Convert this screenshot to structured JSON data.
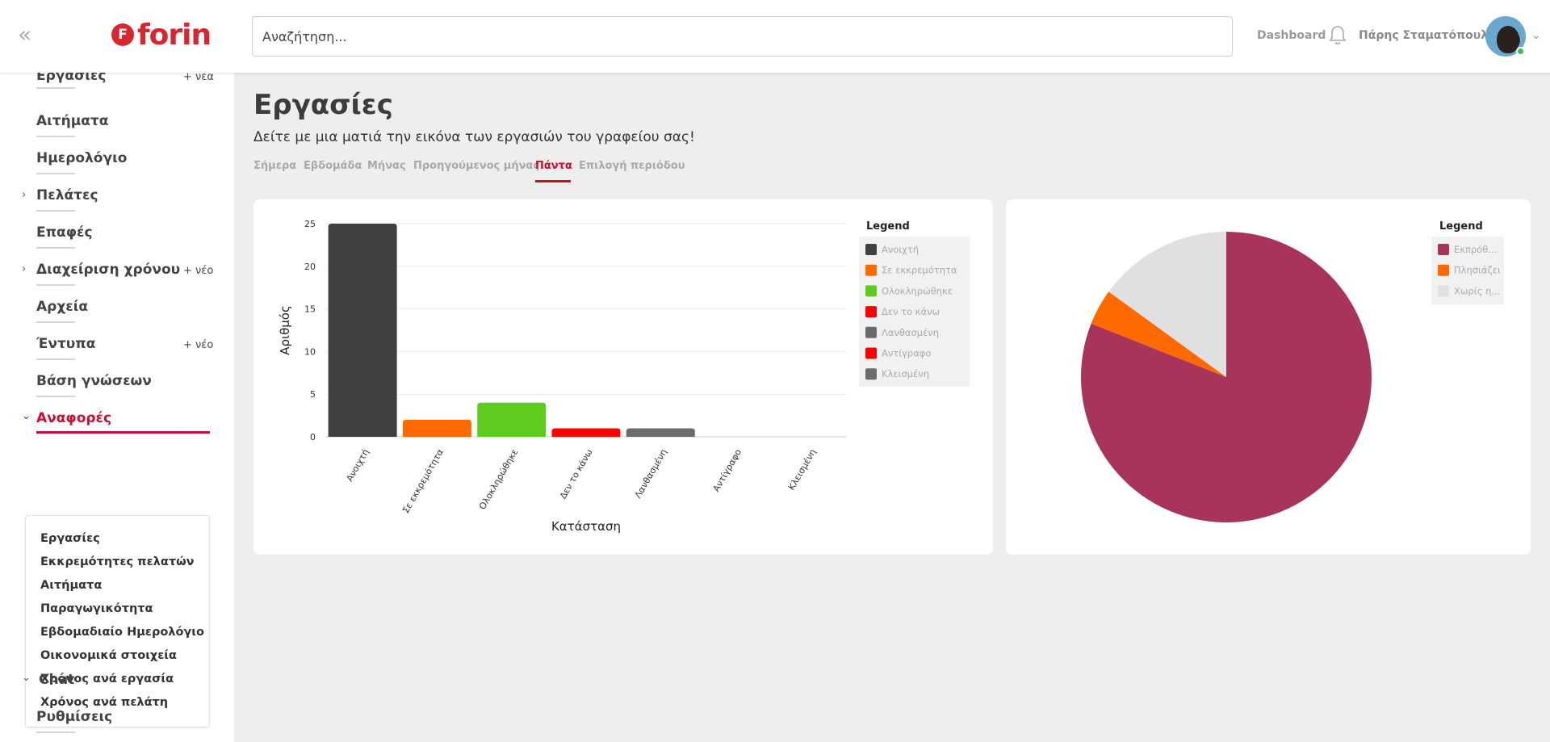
{
  "header": {
    "collapse_icon": "double-chevron-left-icon",
    "logo_text": "forin",
    "logo_mark": "F",
    "search_placeholder": "Αναζήτηση...",
    "dashboard_link": "Dashboard",
    "username": "Πάρης Σταματόπουλος"
  },
  "sidebar": {
    "partial_top": "Εργασίες",
    "partial_top_new": "+ νέα",
    "items": [
      {
        "label": "Αιτήματα"
      },
      {
        "label": "Ημερολόγιο"
      },
      {
        "label": "Πελάτες"
      },
      {
        "label": "Επαφές"
      },
      {
        "label": "Διαχείριση χρόνου",
        "new": "+ νέο"
      },
      {
        "label": "Αρχεία"
      },
      {
        "label": "Έντυπα",
        "new": "+ νέο"
      },
      {
        "label": "Βάση γνώσεων"
      },
      {
        "label": "Αναφορές"
      },
      {
        "label": "Chat"
      },
      {
        "label": "Ρυθμίσεις"
      }
    ],
    "submenu": [
      "Εργασίες",
      "Εκκρεμότητες πελατών",
      "Αιτήματα",
      "Παραγωγικότητα",
      "Εβδομαδιαίο Ημερολόγιο",
      "Οικονομικά στοιχεία",
      "Χρόνος ανά εργασία",
      "Χρόνος ανά πελάτη"
    ]
  },
  "main": {
    "title": "Εργασίες",
    "subtitle": "Δείτε με μια ματιά την εικόνα των εργασιών του γραφείου σας!",
    "tabs": [
      "Σήμερα",
      "Εβδομάδα",
      "Μήνας",
      "Προηγούμενος μήνας",
      "Πάντα",
      "Επιλογή περιόδου"
    ],
    "active_tab": "Πάντα"
  },
  "chart_data": [
    {
      "type": "bar",
      "categories": [
        "Ανοιχτή",
        "Σε εκκρεμότητα",
        "Ολοκληρώθηκε",
        "Δεν το κάνω",
        "Λανθασμένη",
        "Αντίγραφο",
        "Κλεισμένη"
      ],
      "values": [
        25,
        2,
        4,
        1,
        1,
        0,
        0
      ],
      "colors": [
        "#404040",
        "#ff6a00",
        "#5ecb1e",
        "#ff0000",
        "#6b6b6b",
        "#ff0000",
        "#6b6b6b"
      ],
      "xlabel": "Κατάσταση",
      "ylabel": "Αριθμός",
      "yticks": [
        0,
        5,
        10,
        15,
        20,
        25
      ],
      "ylim": [
        0,
        25
      ],
      "grid": true,
      "legend_title": "Legend",
      "legend_position": "right",
      "legend": [
        "Ανοιχτή",
        "Σε εκκρεμότητα",
        "Ολοκληρώθηκε",
        "Δεν το κάνω",
        "Λανθασμένη",
        "Αντίγραφο",
        "Κλεισμένη"
      ]
    },
    {
      "type": "pie",
      "labels": [
        "Εκπρόθ...",
        "Πλησιάζει",
        "Χωρίς η..."
      ],
      "values": [
        81,
        4,
        15
      ],
      "colors": [
        "#a8345a",
        "#ff6a00",
        "#e0e0e0"
      ],
      "legend_title": "Legend",
      "legend_position": "top-right"
    }
  ]
}
